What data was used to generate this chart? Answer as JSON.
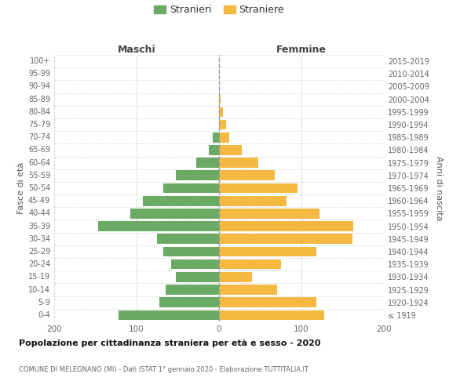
{
  "age_groups": [
    "100+",
    "95-99",
    "90-94",
    "85-89",
    "80-84",
    "75-79",
    "70-74",
    "65-69",
    "60-64",
    "55-59",
    "50-54",
    "45-49",
    "40-44",
    "35-39",
    "30-34",
    "25-29",
    "20-24",
    "15-19",
    "10-14",
    "5-9",
    "0-4"
  ],
  "birth_years": [
    "≤ 1919",
    "1920-1924",
    "1925-1929",
    "1930-1934",
    "1935-1939",
    "1940-1944",
    "1945-1949",
    "1950-1954",
    "1955-1959",
    "1960-1964",
    "1965-1969",
    "1970-1974",
    "1975-1979",
    "1980-1984",
    "1985-1989",
    "1990-1994",
    "1995-1999",
    "2000-2004",
    "2005-2009",
    "2010-2014",
    "2015-2019"
  ],
  "maschi": [
    0,
    0,
    0,
    0,
    0,
    0,
    8,
    12,
    28,
    52,
    68,
    92,
    108,
    147,
    75,
    68,
    58,
    52,
    65,
    72,
    122
  ],
  "femmine": [
    0,
    0,
    0,
    2,
    5,
    9,
    12,
    28,
    48,
    68,
    95,
    82,
    122,
    163,
    162,
    118,
    75,
    40,
    70,
    118,
    128
  ],
  "color_maschi": "#6aaa64",
  "color_femmine": "#f5b942",
  "title": "Popolazione per cittadinanza straniera per età e sesso - 2020",
  "subtitle": "COMUNE DI MELEGNANO (MI) - Dati ISTAT 1° gennaio 2020 - Elaborazione TUTTITALIA.IT",
  "label_maschi": "Maschi",
  "label_femmine": "Femmine",
  "ylabel_left": "Fasce di età",
  "ylabel_right": "Anni di nascita",
  "legend_maschi": "Stranieri",
  "legend_femmine": "Straniere",
  "xlim": 200,
  "background_color": "#ffffff",
  "grid_color": "#cccccc"
}
